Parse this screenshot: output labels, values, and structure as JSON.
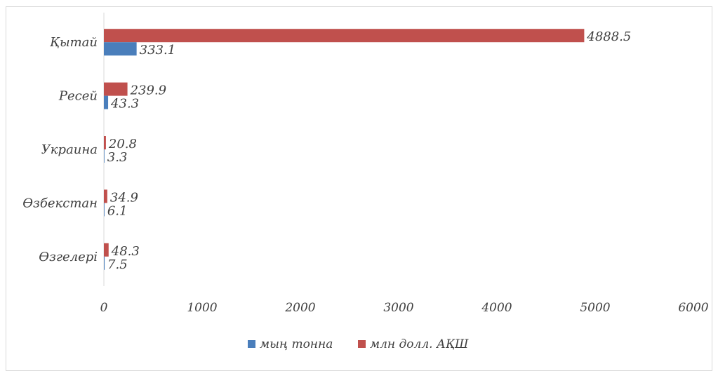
{
  "chart_data": {
    "type": "bar",
    "orientation": "horizontal",
    "categories": [
      "Қытай",
      "Ресей",
      "Украина",
      "Өзбекстан",
      "Өзгелері"
    ],
    "series": [
      {
        "name": "мың тонна",
        "values": [
          333.1,
          43.3,
          3.3,
          6.1,
          7.5
        ],
        "color": "#4a7ebb",
        "labels": [
          "333.1",
          "43.3",
          "3.3",
          "6.1",
          "7.5"
        ]
      },
      {
        "name": "млн долл. АҚШ",
        "values": [
          4888.5,
          239.9,
          20.8,
          34.9,
          48.3
        ],
        "color": "#c0504d",
        "labels": [
          "4888.5",
          "239.9",
          "20.8",
          "34.9",
          "48.3"
        ]
      }
    ],
    "xlim": [
      0,
      6000
    ],
    "xticks": [
      0,
      1000,
      2000,
      3000,
      4000,
      5000,
      6000
    ],
    "xtick_labels": [
      "0",
      "1000",
      "2000",
      "3000",
      "4000",
      "5000",
      "6000"
    ],
    "legend_position": "bottom",
    "grid": false
  }
}
